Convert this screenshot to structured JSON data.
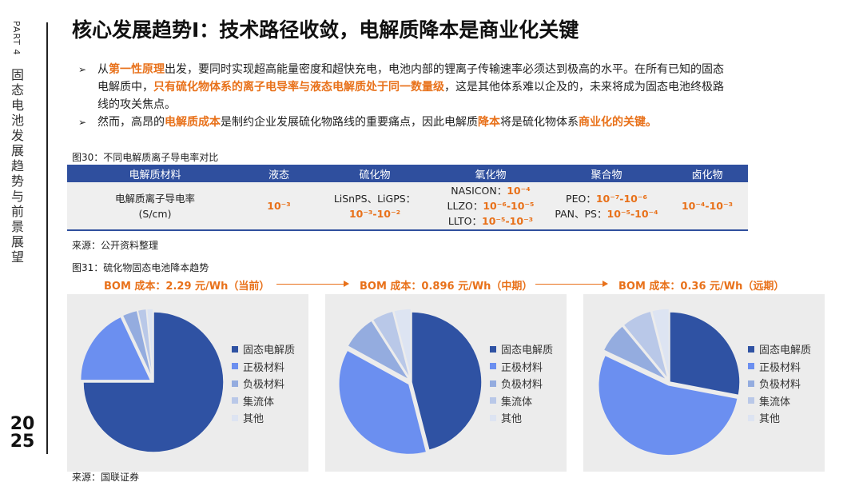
{
  "sidebar": {
    "part": "PART 4",
    "title": "固态电池发展趋势与前景展望",
    "year_top": "20",
    "year_bottom": "25"
  },
  "page_title": "核心发展趋势Ⅰ：技术路径收敛，电解质降本是商业化关键",
  "bullets": [
    {
      "segments": [
        {
          "text": "从",
          "hl": false
        },
        {
          "text": "第一性原理",
          "hl": true
        },
        {
          "text": "出发，要同时实现超高能量密度和超快充电，电池内部的锂离子传输速率必须达到极高的水平。在所有已知的固态电解质中，",
          "hl": false
        },
        {
          "text": "只有硫化物体系的离子电导率与液态电解质处于同一数量级",
          "hl": true
        },
        {
          "text": "，这是其他体系难以企及的，未来将成为固态电池终极路线的攻关焦点。",
          "hl": false
        }
      ]
    },
    {
      "segments": [
        {
          "text": "然而，高昂的",
          "hl": false
        },
        {
          "text": "电解质成本",
          "hl": true
        },
        {
          "text": "是制约企业发展硫化物路线的重要痛点，因此电解质",
          "hl": false
        },
        {
          "text": "降本",
          "hl": true
        },
        {
          "text": "将是硫化物体系",
          "hl": false
        },
        {
          "text": "商业化的关键。",
          "hl": true
        }
      ]
    }
  ],
  "fig30": {
    "caption": "图30：不同电解质离子导电率对比",
    "headers": [
      "电解质材料",
      "液态",
      "硫化物",
      "氧化物",
      "聚合物",
      "卤化物"
    ],
    "row_label_1": "电解质离子导电率",
    "row_label_2": "(S/cm)",
    "liquid": "10⁻³",
    "sulfide_names": "LiSnPS、LiGPS：",
    "sulfide_value": "10⁻³-10⁻²",
    "oxide": [
      {
        "name": "NASICON：",
        "value": "10⁻⁴"
      },
      {
        "name": "LLZO：",
        "value": "10⁻⁶-10⁻⁵"
      },
      {
        "name": "LLTO：",
        "value": "10⁻⁵-10⁻³"
      }
    ],
    "polymer": [
      {
        "name": "PEO：",
        "value": "10⁻⁷-10⁻⁶"
      },
      {
        "name": "PAN、PS：",
        "value": "10⁻⁵-10⁻⁴"
      }
    ],
    "halide": "10⁻⁴-10⁻³",
    "source": "来源：公开资料整理"
  },
  "fig31": {
    "caption": "图31：硫化物固态电池降本趋势",
    "bom_labels": [
      "BOM 成本：2.29 元/Wh（当前）",
      "BOM 成本：0.896 元/Wh（中期）",
      "BOM 成本：0.36 元/Wh（远期）"
    ],
    "source": "来源：国联证券"
  },
  "colors": {
    "accent": "#e8711a",
    "header_blue": "#2f4f9e",
    "slices": [
      "#2f52a3",
      "#6b8ff0",
      "#94acdf",
      "#b9c8e8",
      "#dde4f2"
    ]
  },
  "chart_data": [
    {
      "type": "pie",
      "title": "BOM 成本：2.29 元/Wh（当前）",
      "categories": [
        "固态电解质",
        "正极材料",
        "负极材料",
        "集流体",
        "其他"
      ],
      "values": [
        75,
        18,
        3.5,
        2,
        1.5
      ],
      "legend": "right"
    },
    {
      "type": "pie",
      "title": "BOM 成本：0.896 元/Wh（中期）",
      "categories": [
        "固态电解质",
        "正极材料",
        "负极材料",
        "集流体",
        "其他"
      ],
      "values": [
        46,
        37,
        8,
        5,
        4
      ],
      "legend": "right"
    },
    {
      "type": "pie",
      "title": "BOM 成本：0.36 元/Wh（远期）",
      "categories": [
        "固态电解质",
        "正极材料",
        "负极材料",
        "集流体",
        "其他"
      ],
      "values": [
        28,
        54,
        7,
        7,
        4
      ],
      "legend": "right"
    }
  ]
}
